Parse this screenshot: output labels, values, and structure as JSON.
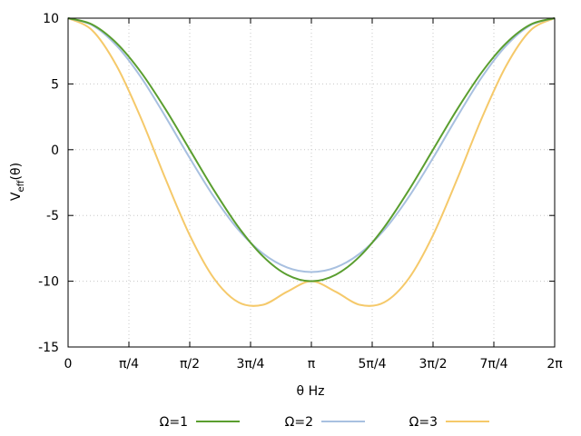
{
  "chart_data": {
    "type": "line",
    "xlabel": "θ Hz",
    "ylabel": {
      "base": "V",
      "sub": "eff",
      "suffix": "(θ)"
    },
    "xlim": [
      0,
      6.283185307
    ],
    "ylim": [
      -15,
      10
    ],
    "grid": true,
    "legend_placement": "bottom",
    "x_ticks": [
      {
        "value": 0,
        "label": "0"
      },
      {
        "value": 0.785398,
        "label": "π/4"
      },
      {
        "value": 1.570796,
        "label": "π/2"
      },
      {
        "value": 2.356194,
        "label": "3π/4"
      },
      {
        "value": 3.141593,
        "label": "π"
      },
      {
        "value": 3.926991,
        "label": "5π/4"
      },
      {
        "value": 4.712389,
        "label": "3π/2"
      },
      {
        "value": 5.497787,
        "label": "7π/4"
      },
      {
        "value": 6.283185,
        "label": "2π"
      }
    ],
    "y_ticks": [
      {
        "value": 10,
        "label": "10"
      },
      {
        "value": 5,
        "label": "5"
      },
      {
        "value": 0,
        "label": "0"
      },
      {
        "value": -5,
        "label": "-5"
      },
      {
        "value": -10,
        "label": "-10"
      },
      {
        "value": -15,
        "label": "-15"
      }
    ],
    "x": [
      0,
      0.314159,
      0.628319,
      0.942478,
      1.256637,
      1.570796,
      1.884956,
      2.199115,
      2.513274,
      2.827433,
      3.141593,
      3.455752,
      3.769911,
      4.08407,
      4.39823,
      4.712389,
      5.026548,
      5.340708,
      5.654867,
      5.969026,
      6.283185
    ],
    "series": [
      {
        "name": "Ω=1",
        "color": "#5a9e2f",
        "values": [
          10,
          9.51,
          8.09,
          5.88,
          3.09,
          0,
          -3.09,
          -5.88,
          -8.09,
          -9.51,
          -10,
          -9.51,
          -8.09,
          -5.88,
          -3.09,
          0,
          3.09,
          5.88,
          8.09,
          9.51,
          10
        ]
      },
      {
        "name": "Ω=2",
        "color": "#a8c0e0",
        "values": [
          10,
          9.46,
          7.9,
          5.5,
          2.52,
          -0.63,
          -3.6,
          -6.09,
          -7.88,
          -8.95,
          -9.3,
          -8.95,
          -7.88,
          -6.09,
          -3.6,
          -0.63,
          2.52,
          5.5,
          7.9,
          9.46,
          10
        ]
      },
      {
        "name": "Ω=3",
        "color": "#f5c96a",
        "values": [
          10,
          9.06,
          6.36,
          2.38,
          -2.2,
          -6.5,
          -9.8,
          -11.6,
          -11.8,
          -10.8,
          -10,
          -10.8,
          -11.8,
          -11.6,
          -9.8,
          -6.5,
          -2.2,
          2.38,
          6.36,
          9.06,
          10
        ]
      }
    ]
  }
}
